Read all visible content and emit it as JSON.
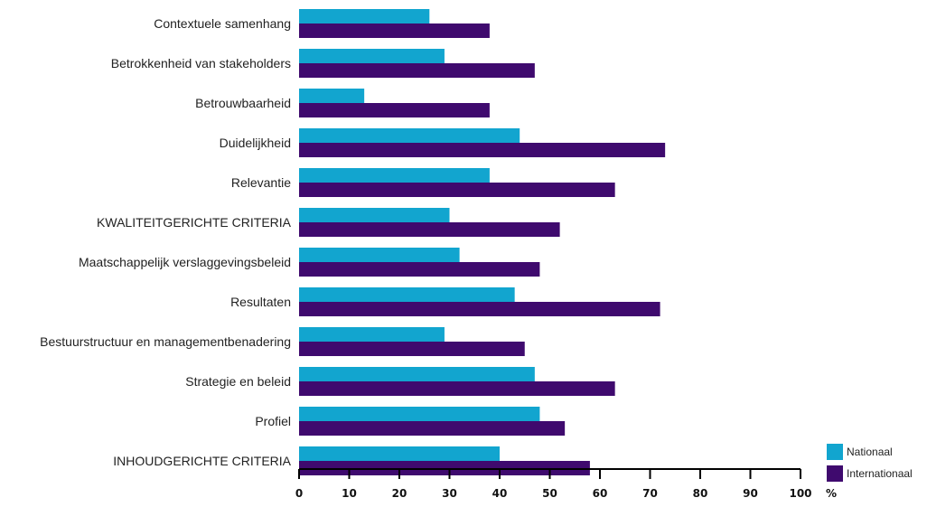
{
  "chart_data": {
    "type": "bar",
    "orientation": "horizontal",
    "categories": [
      "Contextuele samenhang",
      "Betrokkenheid van stakeholders",
      "Betrouwbaarheid",
      "Duidelijkheid",
      "Relevantie",
      "KWALITEITGERICHTE CRITERIA",
      "Maatschappelijk verslaggevingsbeleid",
      "Resultaten",
      "Bestuurstructuur en managementbenadering",
      "Strategie en beleid",
      "Profiel",
      "INHOUDGERICHTE CRITERIA"
    ],
    "series": [
      {
        "name": "Nationaal",
        "color": "#12a5cf",
        "values": [
          26,
          29,
          13,
          44,
          38,
          30,
          32,
          43,
          29,
          47,
          48,
          40
        ]
      },
      {
        "name": "Internationaal",
        "color": "#3f0a6e",
        "values": [
          38,
          47,
          38,
          73,
          63,
          52,
          48,
          72,
          45,
          63,
          53,
          58
        ]
      }
    ],
    "xlim": [
      0,
      100
    ],
    "xticks": [
      "0",
      "10",
      "20",
      "30",
      "40",
      "50",
      "60",
      "70",
      "80",
      "90",
      "100"
    ],
    "xunit": "%",
    "legend_position": "bottom-right",
    "grid": false
  }
}
